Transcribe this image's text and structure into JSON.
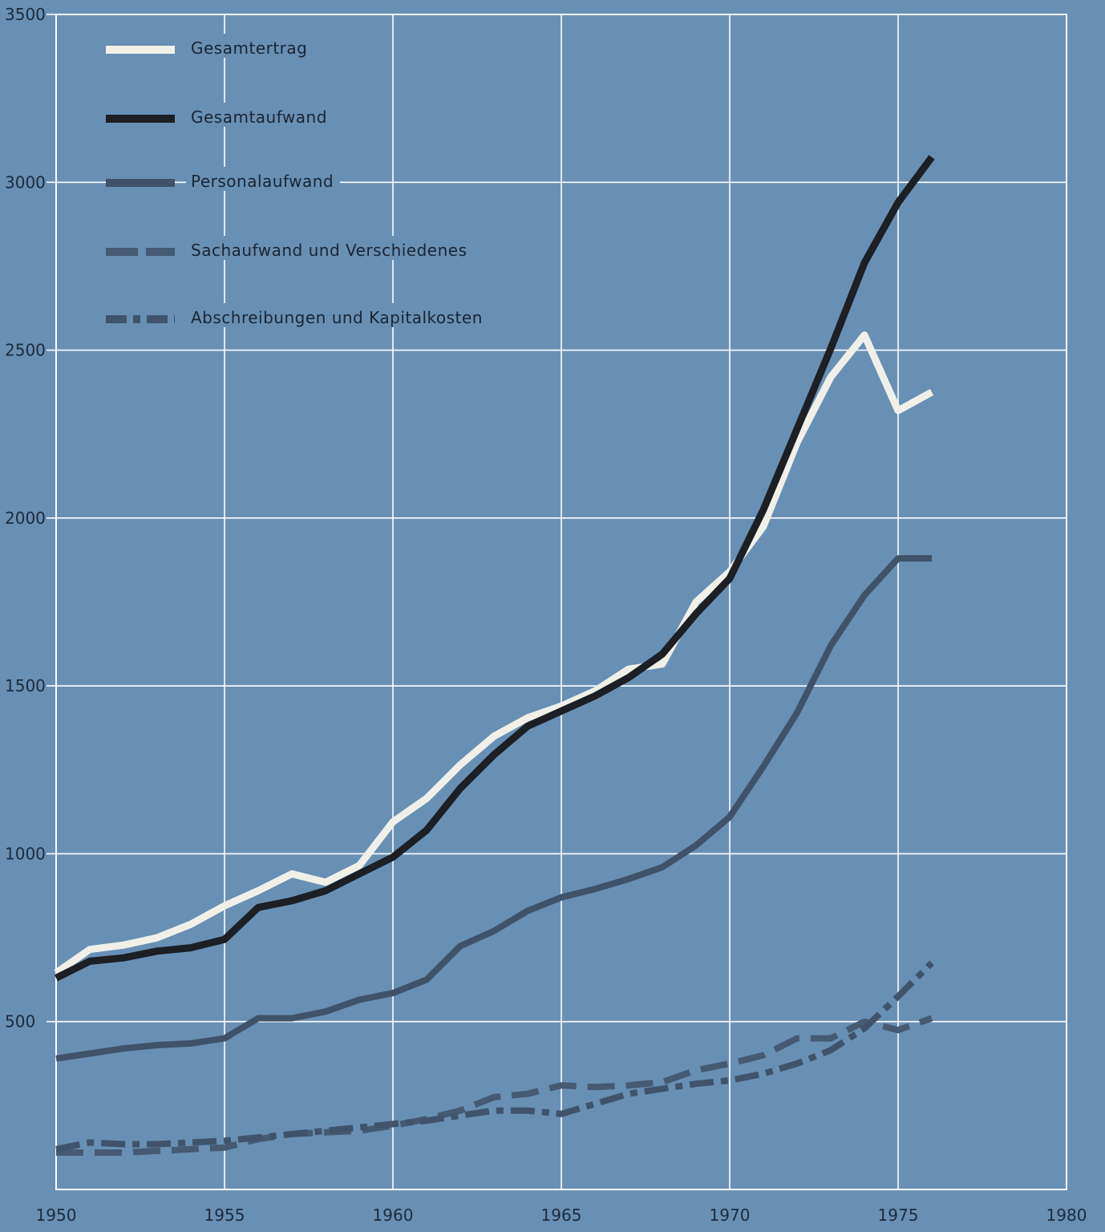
{
  "chart_data": {
    "type": "line",
    "title": "",
    "xlabel": "",
    "ylabel": "",
    "xlim": [
      1950,
      1980
    ],
    "ylim": [
      0,
      3500
    ],
    "x_ticks": [
      1950,
      1955,
      1960,
      1965,
      1970,
      1975,
      1980
    ],
    "y_ticks": [
      500,
      1000,
      1500,
      2000,
      2500,
      3000,
      3500
    ],
    "grid": true,
    "legend_position": "top-left",
    "x": [
      1950,
      1951,
      1952,
      1953,
      1954,
      1955,
      1956,
      1957,
      1958,
      1959,
      1960,
      1961,
      1962,
      1963,
      1964,
      1965,
      1966,
      1967,
      1968,
      1969,
      1970,
      1971,
      1972,
      1973,
      1974,
      1975,
      1976
    ],
    "series": [
      {
        "name": "Gesamtertrag",
        "color": "#f0f0e8",
        "style": "solid",
        "values": [
          645,
          715,
          728,
          750,
          790,
          845,
          890,
          940,
          915,
          965,
          1095,
          1165,
          1265,
          1350,
          1405,
          1440,
          1485,
          1550,
          1565,
          1750,
          1840,
          1975,
          2225,
          2420,
          2545,
          2320,
          2375
        ]
      },
      {
        "name": "Gesamtaufwand",
        "color": "#1c1f24",
        "style": "solid",
        "values": [
          630,
          680,
          690,
          710,
          720,
          745,
          840,
          860,
          890,
          940,
          990,
          1070,
          1195,
          1295,
          1380,
          1425,
          1470,
          1525,
          1595,
          1715,
          1820,
          2025,
          2265,
          2505,
          2760,
          2940,
          3075
        ]
      },
      {
        "name": "Personalaufwand",
        "color": "#3e526a",
        "style": "solid",
        "values": [
          390,
          405,
          420,
          430,
          435,
          450,
          510,
          510,
          530,
          565,
          585,
          625,
          725,
          770,
          830,
          870,
          895,
          925,
          960,
          1025,
          1110,
          1260,
          1420,
          1620,
          1770,
          1880,
          1880
        ]
      },
      {
        "name": "Sachaufwand und Verschiedenes",
        "color": "#455a73",
        "style": "dashed",
        "values": [
          110,
          110,
          110,
          115,
          120,
          125,
          150,
          165,
          170,
          175,
          190,
          210,
          235,
          275,
          285,
          310,
          305,
          310,
          320,
          355,
          375,
          400,
          450,
          450,
          500,
          475,
          510
        ]
      },
      {
        "name": "Abschreibungen und Kapitalkosten",
        "color": "#3f546c",
        "style": "dashdot",
        "values": [
          120,
          140,
          135,
          135,
          140,
          145,
          155,
          165,
          175,
          185,
          195,
          205,
          220,
          235,
          235,
          225,
          255,
          285,
          300,
          315,
          325,
          345,
          375,
          415,
          480,
          575,
          675
        ]
      }
    ]
  }
}
